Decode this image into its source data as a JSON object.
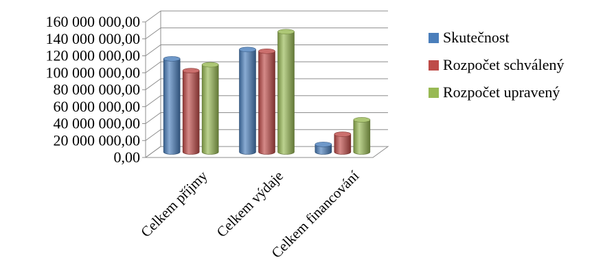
{
  "chart_data": {
    "type": "bar",
    "style": "3d-cylinder",
    "categories": [
      "Celkem příjmy",
      "Celkem výdaje",
      "Celkem financování"
    ],
    "series": [
      {
        "name": "Skutečnost",
        "color": "#4a7ebb",
        "values": [
          110000000,
          121000000,
          9000000
        ]
      },
      {
        "name": "Rozpočet schválený",
        "color": "#be4b48",
        "values": [
          96000000,
          119000000,
          21000000
        ]
      },
      {
        "name": "Rozpočet upravený",
        "color": "#98b954",
        "values": [
          103000000,
          142000000,
          38000000
        ]
      }
    ],
    "ylim": [
      0,
      160000000
    ],
    "y_ticks": [
      "0,00",
      "20 000 000,00",
      "40 000 000,00",
      "60 000 000,00",
      "80 000 000,00",
      "100 000 000,00",
      "120 000 000,00",
      "140 000 000,00",
      "160 000 000,00"
    ],
    "grid": true,
    "legend_position": "right"
  }
}
